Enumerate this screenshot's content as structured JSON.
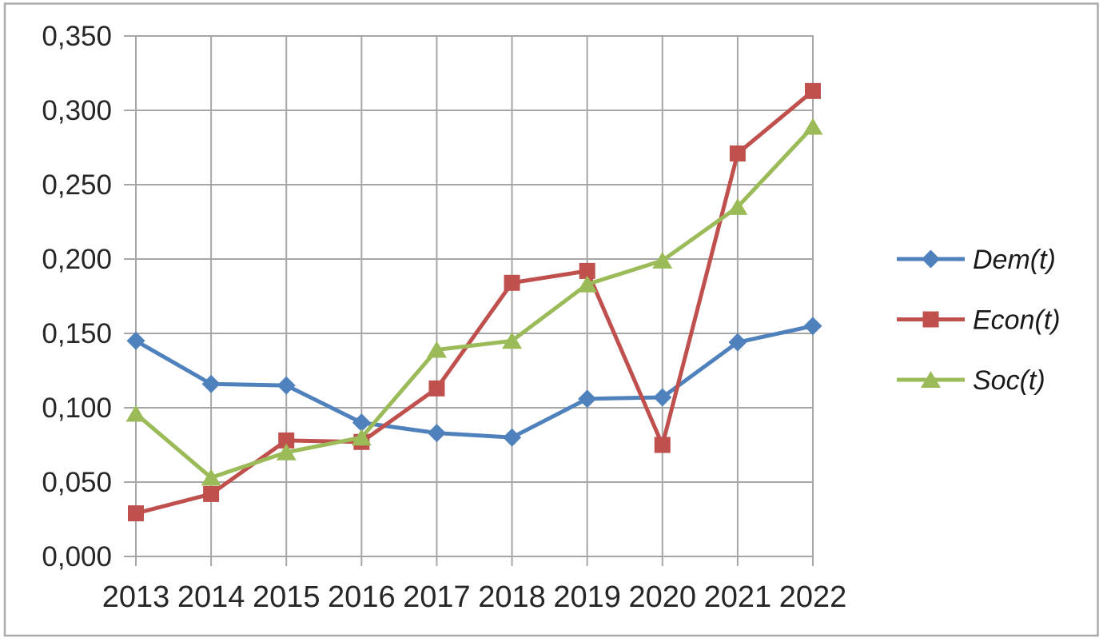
{
  "chart_data": {
    "type": "line",
    "title": "",
    "categories": [
      "2013",
      "2014",
      "2015",
      "2016",
      "2017",
      "2018",
      "2019",
      "2020",
      "2021",
      "2022"
    ],
    "series": [
      {
        "id": "dem",
        "name": "Dem(t)",
        "color": "#4F81BD",
        "marker": "diamond",
        "values": [
          0.145,
          0.116,
          0.115,
          0.09,
          0.083,
          0.08,
          0.106,
          0.107,
          0.144,
          0.155
        ]
      },
      {
        "id": "econ",
        "name": "Econ(t)",
        "color": "#C0504D",
        "marker": "square",
        "values": [
          0.029,
          0.042,
          0.078,
          0.077,
          0.113,
          0.184,
          0.192,
          0.075,
          0.271,
          0.313
        ]
      },
      {
        "id": "soc",
        "name": "Soc(t)",
        "color": "#9BBB59",
        "marker": "triangle",
        "values": [
          0.096,
          0.053,
          0.07,
          0.08,
          0.139,
          0.145,
          0.183,
          0.199,
          0.235,
          0.289
        ]
      }
    ],
    "xlabel": "",
    "ylabel": "",
    "ylim": [
      0,
      0.35
    ],
    "ytick_step": 0.05,
    "ytick_labels": [
      "0,000",
      "0,050",
      "0,100",
      "0,150",
      "0,200",
      "0,250",
      "0,300",
      "0,350"
    ],
    "decimal_separator": ",",
    "grid": "both",
    "legend_position": "right",
    "legend_labels": [
      "Dem(t)",
      "Econ(t)",
      "Soc(t)"
    ],
    "gridline_color": "#A6A6A6",
    "text_color": "#262626",
    "border_color": "#ABABAB"
  }
}
